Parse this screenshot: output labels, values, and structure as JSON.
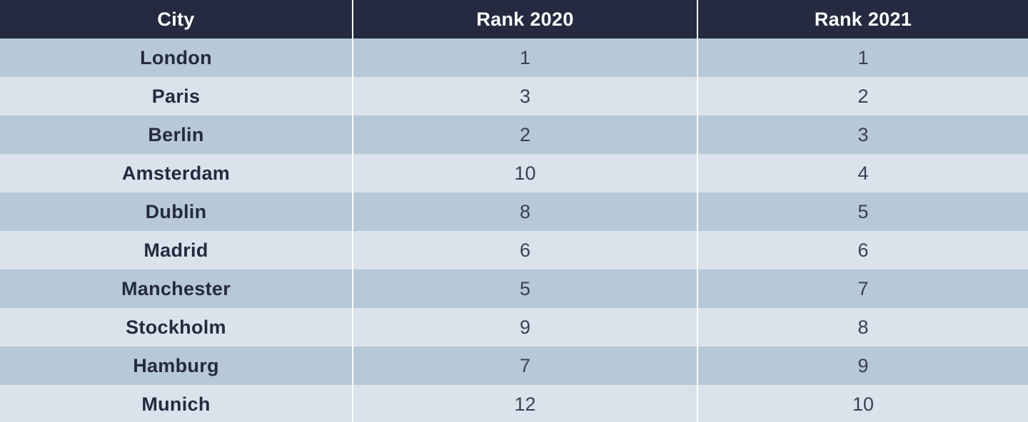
{
  "table": {
    "headers": [
      "City",
      "Rank 2020",
      "Rank 2021"
    ],
    "rows": [
      [
        "London",
        "1",
        "1"
      ],
      [
        "Paris",
        "3",
        "2"
      ],
      [
        "Berlin",
        "2",
        "3"
      ],
      [
        "Amsterdam",
        "10",
        "4"
      ],
      [
        "Dublin",
        "8",
        "5"
      ],
      [
        "Madrid",
        "6",
        "6"
      ],
      [
        "Manchester",
        "5",
        "7"
      ],
      [
        "Stockholm",
        "9",
        "8"
      ],
      [
        "Hamburg",
        "7",
        "9"
      ],
      [
        "Munich",
        "12",
        "10"
      ]
    ]
  },
  "colors": {
    "header_bg": "#252a40",
    "header_text": "#ffffff",
    "row_odd": "#b7c8d7",
    "row_even": "#dae3eb",
    "body_text": "#252a40"
  }
}
